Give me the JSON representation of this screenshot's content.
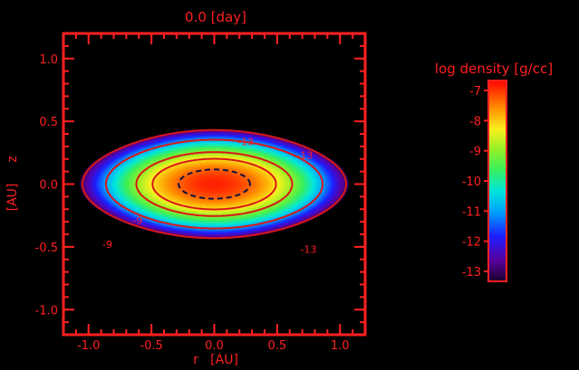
{
  "chart_data": {
    "type": "heatmap",
    "title": "0.0 [day]",
    "xlabel": "r   [AU]",
    "ylabel_units": "[AU]",
    "ylabel_axis": "z",
    "xlim": [
      -1.2,
      1.2
    ],
    "ylim": [
      -1.2,
      1.2
    ],
    "x_ticks": [
      -1.0,
      -0.5,
      0.0,
      0.5,
      1.0
    ],
    "x_tick_labels": [
      "-1.0",
      "-0.5",
      "0.0",
      "0.5",
      "1.0"
    ],
    "y_ticks": [
      -1.0,
      -0.5,
      0.0,
      0.5,
      1.0
    ],
    "y_tick_labels": [
      "-1.0",
      "-0.5",
      "0.0",
      "0.5",
      "1.0"
    ],
    "colorbar": {
      "title": "log density [g/cc]",
      "min": -13.3,
      "max": -6.7,
      "ticks": [
        -7,
        -8,
        -9,
        -10,
        -11,
        -12,
        -13
      ],
      "tick_labels": [
        "-7",
        "-8",
        "-9",
        "-10",
        "-11",
        "-12",
        "-13"
      ]
    },
    "contours": [
      {
        "level": -13,
        "label": "-13",
        "style": "solid"
      },
      {
        "level": -11,
        "label": "",
        "style": "solid"
      },
      {
        "level": -9,
        "label": "-9",
        "style": "solid"
      },
      {
        "level": -8.2,
        "label": "",
        "style": "solid"
      },
      {
        "level": -7.3,
        "label": "",
        "style": "dashed"
      }
    ],
    "contour_labels_visible": [
      "-13",
      "-13",
      "-9",
      "-9",
      "-13"
    ],
    "colors": {
      "axis": "#ff2020",
      "background": "#000000",
      "contour": "#d81818"
    }
  }
}
